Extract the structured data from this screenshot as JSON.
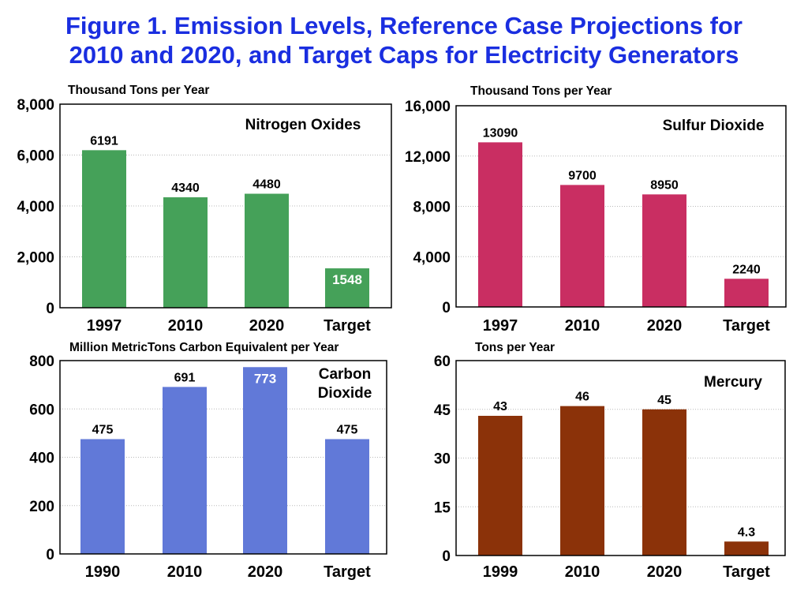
{
  "title": {
    "line1": "Figure 1.  Emission Levels, Reference Case Projections for",
    "line2": "2010 and 2020, and Target Caps for Electricity Generators"
  },
  "chart_data": [
    {
      "type": "bar",
      "ylabel": "Thousand Tons per Year",
      "label": "Nitrogen Oxides",
      "categories": [
        "1997",
        "2010",
        "2020",
        "Target"
      ],
      "values": [
        6191,
        4340,
        4480,
        1548
      ],
      "value_labels": [
        "6191",
        "4340",
        "4480",
        "1548"
      ],
      "ylim": [
        0,
        8000
      ],
      "yticks": [
        0,
        2000,
        4000,
        6000,
        8000
      ],
      "ytick_labels": [
        "0",
        "2,000",
        "4,000",
        "6,000",
        "8,000"
      ],
      "color": "#45a159",
      "grid": true
    },
    {
      "type": "bar",
      "ylabel": "Thousand Tons per Year",
      "label": "Sulfur Dioxide",
      "categories": [
        "1997",
        "2010",
        "2020",
        "Target"
      ],
      "values": [
        13090,
        9700,
        8950,
        2240
      ],
      "value_labels": [
        "13090",
        "9700",
        "8950",
        "2240"
      ],
      "ylim": [
        0,
        16000
      ],
      "yticks": [
        0,
        4000,
        8000,
        12000,
        16000
      ],
      "ytick_labels": [
        "0",
        "4,000",
        "8,000",
        "12,000",
        "16,000"
      ],
      "color": "#c92e62",
      "grid": true
    },
    {
      "type": "bar",
      "ylabel": "Million MetricTons Carbon Equivalent per Year",
      "label": "Carbon Dioxide",
      "categories": [
        "1990",
        "2010",
        "2020",
        "Target"
      ],
      "values": [
        475,
        691,
        773,
        475
      ],
      "value_labels": [
        "475",
        "691",
        "773",
        "475"
      ],
      "ylim": [
        0,
        800
      ],
      "yticks": [
        0,
        200,
        400,
        600,
        800
      ],
      "ytick_labels": [
        "0",
        "200",
        "400",
        "600",
        "800"
      ],
      "color": "#6179d8",
      "grid": true
    },
    {
      "type": "bar",
      "ylabel": "Tons per Year",
      "label": "Mercury",
      "categories": [
        "1999",
        "2010",
        "2020",
        "Target"
      ],
      "values": [
        43,
        46,
        45,
        4.3
      ],
      "value_labels": [
        "43",
        "46",
        "45",
        "4.3"
      ],
      "ylim": [
        0,
        60
      ],
      "yticks": [
        0,
        15,
        30,
        45,
        60
      ],
      "ytick_labels": [
        "0",
        "15",
        "30",
        "45",
        "60"
      ],
      "color": "#8b3209",
      "grid": true
    }
  ]
}
